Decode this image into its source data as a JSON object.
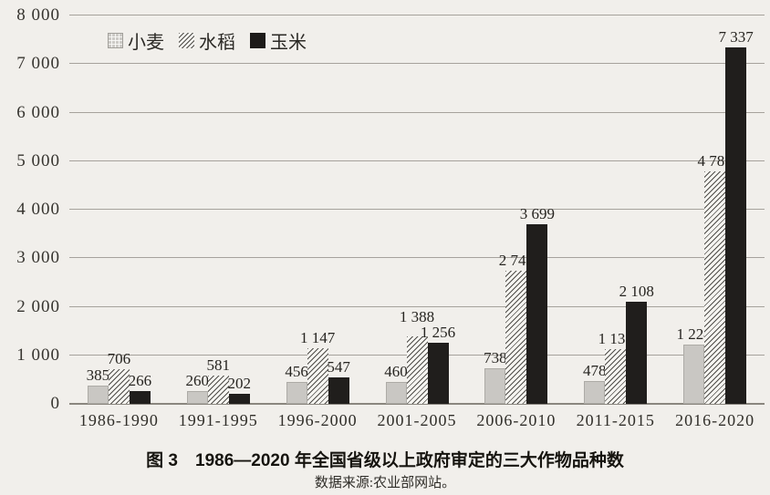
{
  "figure": {
    "title": "图 3　1986—2020 年全国省级以上政府审定的三大作物品种数",
    "source": "数据来源:农业部网站。"
  },
  "chart_data": {
    "type": "bar",
    "title": "图 3　1986—2020 年全国省级以上政府审定的三大作物品种数",
    "source": "数据来源:农业部网站。",
    "categories": [
      "1986-1990",
      "1991-1995",
      "1996-2000",
      "2001-2005",
      "2006-2010",
      "2011-2015",
      "2016-2020"
    ],
    "series": [
      {
        "name": "小麦",
        "pattern": "light-gray-solid",
        "color": "#c9c7c3",
        "values": [
          385,
          260,
          456,
          460,
          738,
          478,
          1224
        ]
      },
      {
        "name": "水稻",
        "pattern": "diagonal-hatch",
        "color": "#f6f5f1",
        "values": [
          706,
          581,
          1147,
          1388,
          2745,
          1131,
          4788
        ]
      },
      {
        "name": "玉米",
        "pattern": "solid-black",
        "color": "#201e1c",
        "values": [
          266,
          202,
          547,
          1256,
          3699,
          2108,
          7337
        ]
      }
    ],
    "xlabel": "",
    "ylabel": "",
    "ylim": [
      0,
      8000
    ],
    "ytick_step": 1000,
    "ytick_labels": [
      "0",
      "1 000",
      "2 000",
      "3 000",
      "4 000",
      "5 000",
      "6 000",
      "7 000",
      "8 000"
    ],
    "grid": true,
    "legend_position": "top-left-inside",
    "value_labels": true,
    "number_format": "space-thousands"
  }
}
